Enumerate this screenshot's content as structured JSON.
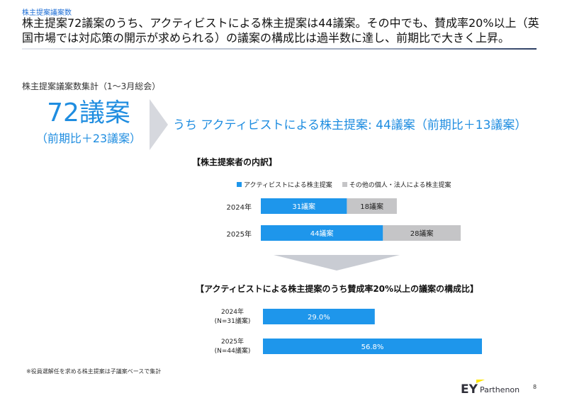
{
  "header": {
    "section_label": "株主提案議案数",
    "headline": "株主提案72議案のうち、アクティビストによる株主提案は44議案。その中でも、賛成率20%以上（英国市場では対応策の開示が求められる）の議案の構成比は過半数に達し、前期比で大きく上昇。"
  },
  "summary": {
    "caption": "株主提案議案数集計（1〜3月総会）",
    "total": "72議案",
    "total_change": "（前期比＋23議案）",
    "activist": "うち アクティビストによる株主提案: 44議案（前期比＋13議案）"
  },
  "colors": {
    "accent": "#1f8de0",
    "bar_blue": "#1e96eb",
    "bar_gray": "#c5c5c7",
    "text": "#222222"
  },
  "chart_data": [
    {
      "type": "bar",
      "orientation": "horizontal",
      "stacked": true,
      "title": "【株主提案者の内訳】",
      "categories": [
        "2024年",
        "2025年"
      ],
      "series": [
        {
          "name": "アクティビストによる株主提案",
          "values": [
            31,
            44
          ],
          "labels": [
            "31議案",
            "44議案"
          ],
          "color": "#1e96eb"
        },
        {
          "name": "その他の個人・法人による株主提案",
          "values": [
            18,
            28
          ],
          "labels": [
            "18議案",
            "28議案"
          ],
          "color": "#c5c5c7"
        }
      ],
      "legend": "top",
      "grid": false
    },
    {
      "type": "bar",
      "orientation": "horizontal",
      "title": "【アクティビストによる株主提案のうち賛成率20%以上の議案の構成比】",
      "categories": [
        [
          "2024年",
          "(N=31議案)"
        ],
        [
          "2025年",
          "(N=44議案)"
        ]
      ],
      "values": [
        29.0,
        56.8
      ],
      "labels": [
        "29.0%",
        "56.8%"
      ],
      "xlim": [
        0,
        100
      ],
      "color": "#1e96eb",
      "grid": false
    }
  ],
  "footnote": "※役員選解任を求める株主提案は子議案ベースで集計",
  "brand": {
    "logo": "EY",
    "name": "Parthenon"
  },
  "page_number": "8"
}
